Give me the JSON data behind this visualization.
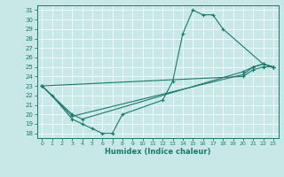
{
  "xlabel": "Humidex (Indice chaleur)",
  "bg_color": "#c8e8e8",
  "line_color": "#1a7a6a",
  "xlim": [
    -0.5,
    23.5
  ],
  "ylim": [
    17.5,
    31.5
  ],
  "xticks": [
    0,
    1,
    2,
    3,
    4,
    5,
    6,
    7,
    8,
    9,
    10,
    11,
    12,
    13,
    14,
    15,
    16,
    17,
    18,
    19,
    20,
    21,
    22,
    23
  ],
  "yticks": [
    18,
    19,
    20,
    21,
    22,
    23,
    24,
    25,
    26,
    27,
    28,
    29,
    30,
    31
  ],
  "segments": {
    "peak_line": [
      [
        0,
        23.0
      ],
      [
        1,
        22.0
      ],
      [
        3,
        19.5
      ],
      [
        4,
        19.0
      ],
      [
        5,
        18.5
      ],
      [
        6,
        18.0
      ],
      [
        7,
        18.0
      ],
      [
        8,
        20.0
      ],
      [
        12,
        21.5
      ],
      [
        13,
        23.5
      ],
      [
        14,
        28.5
      ],
      [
        15,
        31.0
      ],
      [
        16,
        30.5
      ],
      [
        17,
        30.5
      ],
      [
        18,
        29.0
      ],
      [
        22,
        25.3
      ],
      [
        23,
        25.0
      ]
    ],
    "flat_line1": [
      [
        0,
        23.0
      ],
      [
        3,
        20.0
      ],
      [
        4,
        19.5
      ],
      [
        20,
        24.5
      ],
      [
        21,
        25.0
      ],
      [
        22,
        25.3
      ],
      [
        23,
        25.0
      ]
    ],
    "flat_line2": [
      [
        0,
        23.0
      ],
      [
        3,
        19.8
      ],
      [
        20,
        24.2
      ],
      [
        21,
        25.0
      ],
      [
        22,
        25.3
      ],
      [
        23,
        25.0
      ]
    ],
    "flat_line3": [
      [
        0,
        23.0
      ],
      [
        20,
        24.0
      ],
      [
        21,
        24.7
      ],
      [
        22,
        25.0
      ],
      [
        23,
        25.0
      ]
    ]
  }
}
